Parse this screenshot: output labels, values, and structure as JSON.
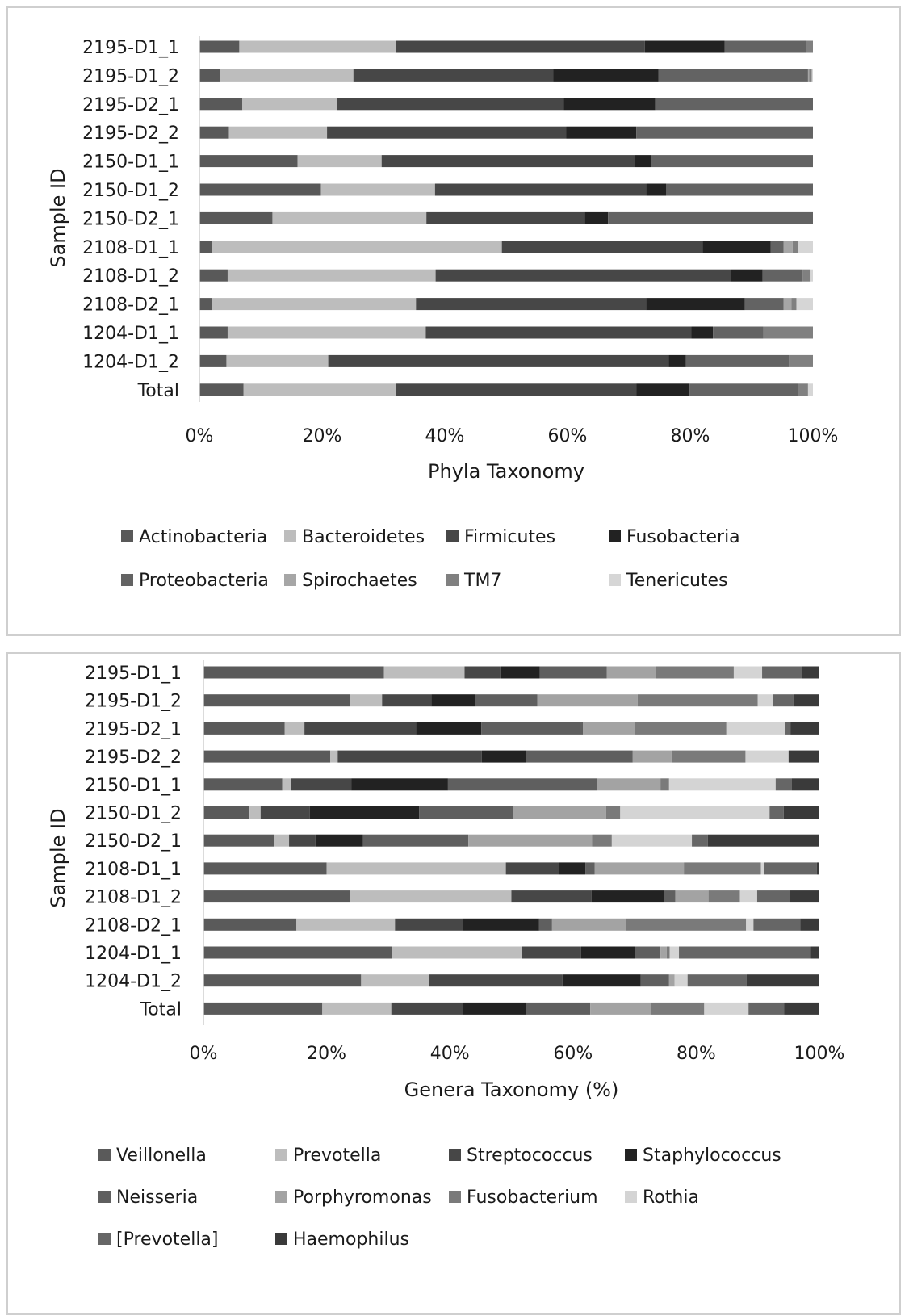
{
  "chart_data": [
    {
      "type": "bar",
      "orientation": "horizontal",
      "stacked": true,
      "normalized": true,
      "xlabel": "Phyla Taxonomy",
      "ylabel": "Sample ID",
      "xlim": [
        0,
        100
      ],
      "x_ticks": [
        "0%",
        "20%",
        "40%",
        "60%",
        "80%",
        "100%"
      ],
      "legend_position": "bottom",
      "grid": false,
      "categories": [
        "2195-D1_1",
        "2195-D1_2",
        "2195-D2_1",
        "2195-D2_2",
        "2150-D1_1",
        "2150-D1_2",
        "2150-D2_1",
        "2108-D1_1",
        "2108-D1_2",
        "2108-D2_1",
        "1204-D1_1",
        "1204-D1_2",
        "Total"
      ],
      "series": [
        {
          "name": "Actinobacteria",
          "color": "#595959",
          "values": [
            6.5,
            3.3,
            7,
            4.8,
            16,
            19.8,
            11.9,
            2,
            4.6,
            2.1,
            4.6,
            4.4,
            7.2
          ]
        },
        {
          "name": "Bacteroidetes",
          "color": "#bdbdbd",
          "values": [
            25.5,
            21.8,
            15.4,
            16,
            13.7,
            18.6,
            25.1,
            47.3,
            33.9,
            33.2,
            32.3,
            16.6,
            24.8
          ]
        },
        {
          "name": "Firmicutes",
          "color": "#474747",
          "values": [
            40.6,
            32.6,
            37,
            39,
            41.3,
            34.4,
            25.8,
            32.7,
            48.2,
            37.5,
            43.3,
            55.5,
            39.2
          ]
        },
        {
          "name": "Fusobacteria",
          "color": "#222222",
          "values": [
            13,
            17.1,
            14.9,
            11.4,
            2.6,
            3.3,
            3.8,
            11.1,
            5.1,
            16.1,
            3.5,
            2.8,
            8.7
          ]
        },
        {
          "name": "Proteobacteria",
          "color": "#636363",
          "values": [
            13.4,
            24.4,
            25.7,
            28.8,
            26.4,
            23.9,
            33.4,
            2.1,
            6.5,
            6.3,
            8.2,
            16.8,
            17.7
          ]
        },
        {
          "name": "Spirochaetes",
          "color": "#a6a6a6",
          "values": [
            0,
            0.2,
            0,
            0,
            0,
            0,
            0,
            1.5,
            0,
            1.3,
            0,
            0,
            0
          ]
        },
        {
          "name": "TM7",
          "color": "#808080",
          "values": [
            1,
            0.4,
            0,
            0,
            0,
            0,
            0,
            0.9,
            1.2,
            0.8,
            8.1,
            3.9,
            1.6
          ]
        },
        {
          "name": "Tenericutes",
          "color": "#d6d6d6",
          "values": [
            0,
            0.2,
            0,
            0,
            0,
            0,
            0,
            2.4,
            0.5,
            2.7,
            0,
            0,
            0.8
          ]
        }
      ]
    },
    {
      "type": "bar",
      "orientation": "horizontal",
      "stacked": true,
      "normalized": true,
      "xlabel": "Genera Taxonomy (%)",
      "ylabel": "Sample ID",
      "xlim": [
        0,
        100
      ],
      "x_ticks": [
        "0%",
        "20%",
        "40%",
        "60%",
        "80%",
        "100%"
      ],
      "legend_position": "bottom",
      "grid": false,
      "categories": [
        "2195-D1_1",
        "2195-D1_2",
        "2195-D2_1",
        "2195-D2_2",
        "2150-D1_1",
        "2150-D1_2",
        "2150-D2_1",
        "2108-D1_1",
        "2108-D1_2",
        "2108-D2_1",
        "1204-D1_1",
        "1204-D1_2",
        "Total"
      ],
      "series": [
        {
          "name": "Veillonella",
          "color": "#5a5a5a",
          "values": [
            29.3,
            23.8,
            13.2,
            20.6,
            12.8,
            7.5,
            11.5,
            20,
            23.8,
            15.1,
            30.6,
            25.6,
            19.3
          ]
        },
        {
          "name": "Prevotella",
          "color": "#bdbdbd",
          "values": [
            13.1,
            5.2,
            3.2,
            1.2,
            1.4,
            1.8,
            2.4,
            29.1,
            26.2,
            16,
            21.1,
            11,
            11.2
          ]
        },
        {
          "name": "Streptococcus",
          "color": "#474747",
          "values": [
            5.8,
            8,
            18.1,
            23.4,
            9.8,
            8,
            4.3,
            8.7,
            13,
            11.1,
            9.6,
            21.7,
            11.6
          ]
        },
        {
          "name": "Staphylococcus",
          "color": "#222222",
          "values": [
            6.4,
            7.1,
            10.6,
            7.2,
            15.7,
            17.8,
            7.7,
            4.2,
            11.8,
            12.3,
            8.8,
            12.7,
            10.2
          ]
        },
        {
          "name": "Neisseria",
          "color": "#5f5f5f",
          "values": [
            10.9,
            10.1,
            16.5,
            17.3,
            24.2,
            15.2,
            17.1,
            1.5,
            1.8,
            2.1,
            4.1,
            4.6,
            10.5
          ]
        },
        {
          "name": "Porphyromonas",
          "color": "#a3a3a3",
          "values": [
            8,
            16.3,
            8.4,
            6.3,
            10.3,
            15.2,
            20.1,
            14.5,
            5.4,
            12,
            1,
            0.9,
            9.9
          ]
        },
        {
          "name": "Fusobacterium",
          "color": "#7a7a7a",
          "values": [
            12.6,
            19.5,
            14.9,
            12,
            1.4,
            2.3,
            3.2,
            12.5,
            5.1,
            19.5,
            0.5,
            0,
            8.6
          ]
        },
        {
          "name": "Rothia",
          "color": "#d4d4d4",
          "values": [
            4.6,
            2.5,
            9.5,
            7,
            17.3,
            24.3,
            13,
            0.5,
            2.8,
            1.2,
            1.5,
            2.1,
            7.2
          ]
        },
        {
          "name": "[Prevotella]",
          "color": "#666666",
          "values": [
            6.5,
            3.3,
            0.9,
            0,
            2.6,
            2.3,
            2.6,
            8.6,
            5.3,
            7.6,
            21.3,
            9.6,
            5.8
          ]
        },
        {
          "name": "Haemophilus",
          "color": "#3a3a3a",
          "values": [
            2.8,
            4.2,
            4.7,
            5,
            4.5,
            5.8,
            18.1,
            0.4,
            4.8,
            3.1,
            1.5,
            11.8,
            5.7
          ]
        }
      ]
    }
  ]
}
